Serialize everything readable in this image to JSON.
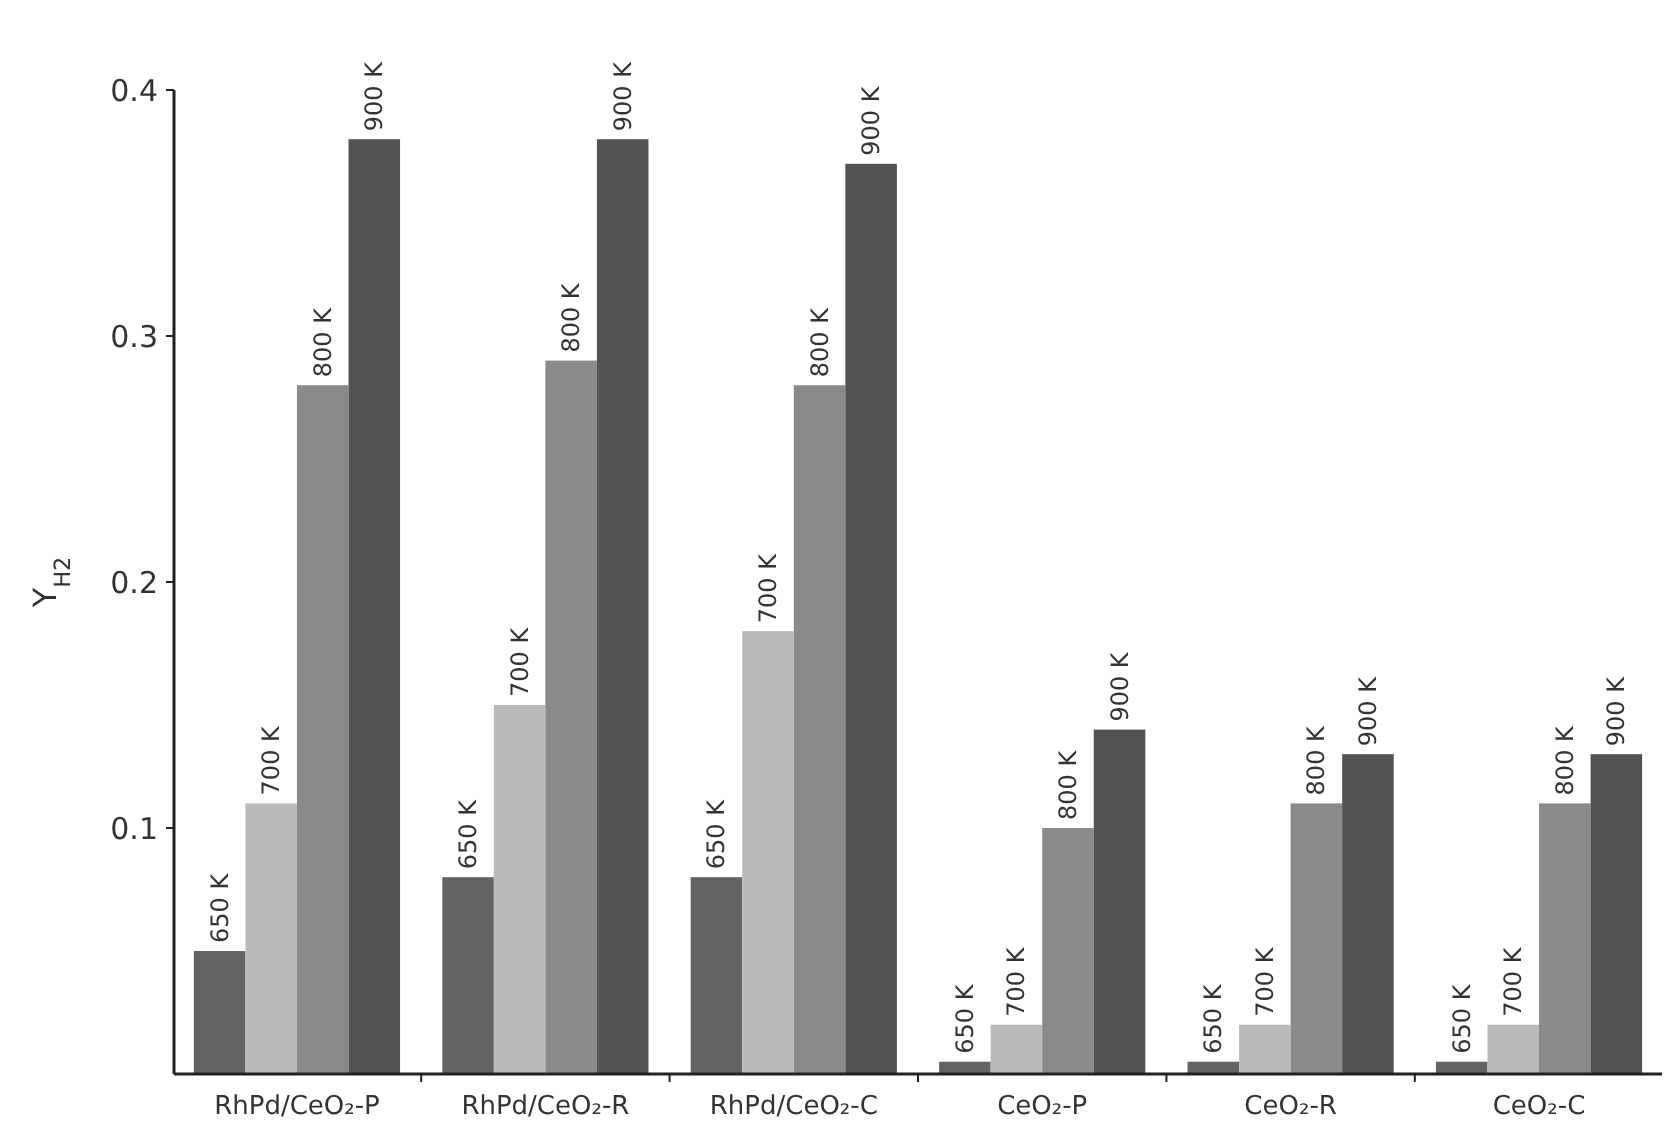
{
  "chart_data": {
    "type": "bar",
    "ylabel": "Y$_{H2}$",
    "categories": [
      "RhPd/CeO₂-P",
      "RhPd/CeO₂-R",
      "RhPd/CeO₂-C",
      "CeO₂-P",
      "CeO₂-R",
      "CeO₂-C"
    ],
    "series": [
      {
        "name": "650 K",
        "color": "#636363",
        "values": [
          0.05,
          0.08,
          0.08,
          0.005,
          0.005,
          0.005
        ]
      },
      {
        "name": "700 K",
        "color": "#bababa",
        "values": [
          0.11,
          0.15,
          0.18,
          0.02,
          0.02,
          0.02
        ]
      },
      {
        "name": "800 K",
        "color": "#8a8a8a",
        "values": [
          0.28,
          0.29,
          0.28,
          0.1,
          0.11,
          0.11
        ]
      },
      {
        "name": "900 K",
        "color": "#525252",
        "values": [
          0.38,
          0.38,
          0.37,
          0.14,
          0.13,
          0.13
        ]
      }
    ],
    "ylim": [
      0,
      0.4
    ],
    "yticks": [
      0.1,
      0.2,
      0.3,
      0.4
    ],
    "grid": false,
    "legend": false
  }
}
